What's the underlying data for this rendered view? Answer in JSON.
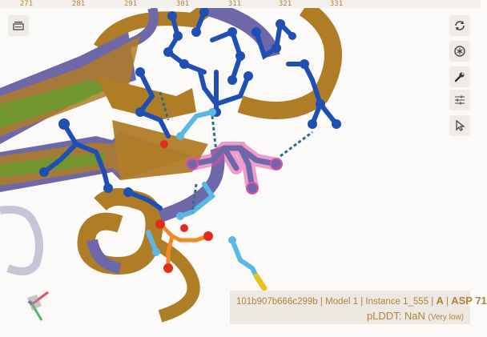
{
  "ruler": {
    "ticks": [
      "271",
      "281",
      "291",
      "301",
      "311",
      "321",
      "331"
    ]
  },
  "toolbar": {
    "left": [
      {
        "name": "sequence-panel-toggle-icon"
      }
    ],
    "right": [
      {
        "name": "reset-view-icon"
      },
      {
        "name": "spin-toggle-icon"
      },
      {
        "name": "settings-wrench-icon"
      },
      {
        "name": "controls-sliders-icon"
      },
      {
        "name": "selection-mode-pointer-icon"
      }
    ]
  },
  "info": {
    "entry_id": "101b907b666c299b",
    "model": "Model 1",
    "instance": "Instance 1_555",
    "chain": "A",
    "residue": "ASP 71",
    "plddt_label": "pLDDT: NaN",
    "plddt_quality": "(Very low)"
  },
  "colors": {
    "ribbon_gold": "#b07d27",
    "ribbon_purple": "#6e68a8",
    "ribbon_green": "#5f9f2c",
    "atom_blue": "#1f4fb3",
    "atom_light_blue": "#58b8e6",
    "oxygen_red": "#e52b1e",
    "phosphorus_orange": "#f08a22",
    "sulfur_yellow": "#e8c21d",
    "highlight_pink": "#e64fa6",
    "label_orange": "#b3813a"
  }
}
